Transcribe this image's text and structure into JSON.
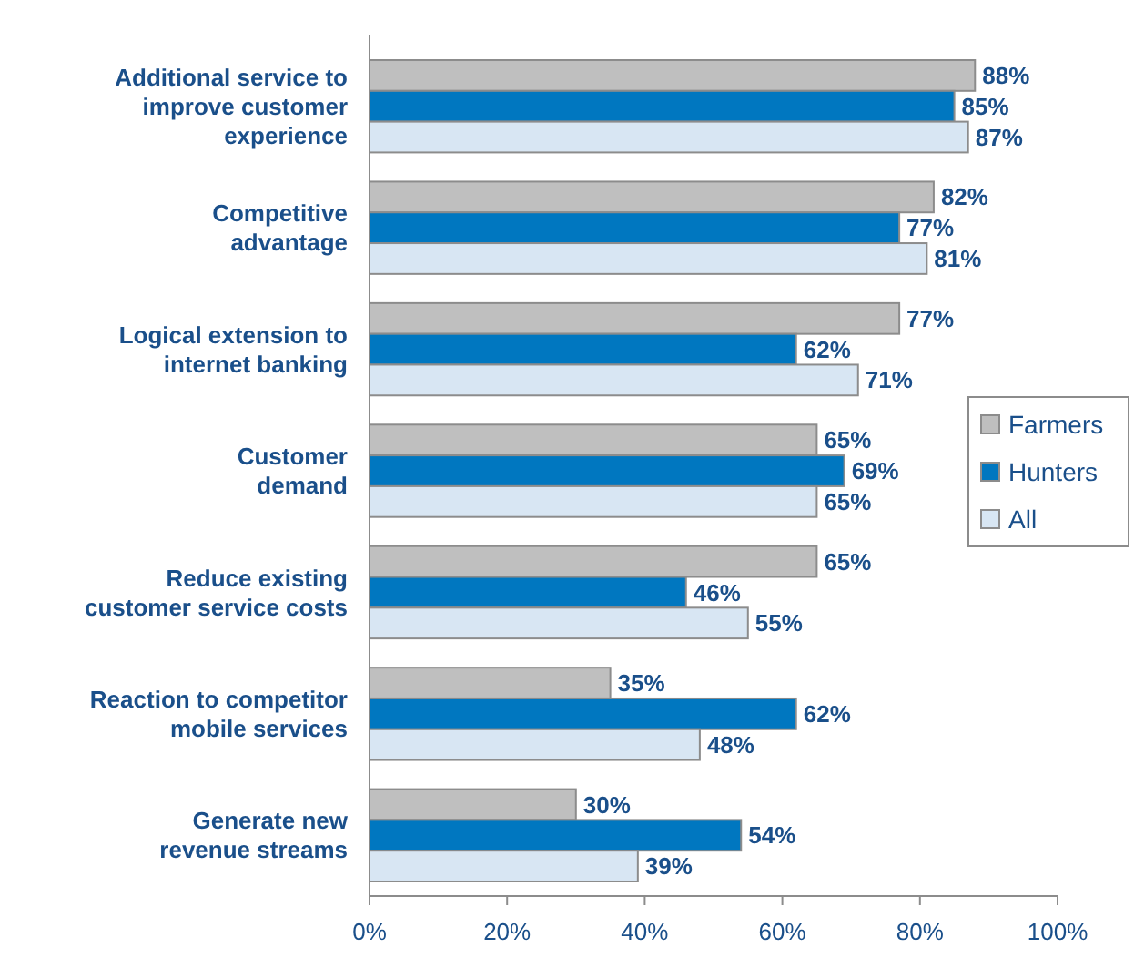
{
  "chart_data": {
    "type": "bar",
    "orientation": "horizontal",
    "categories": [
      "Additional service to\nimprove customer\nexperience",
      "Competitive\nadvantage",
      "Logical extension to\ninternet banking",
      "Customer\ndemand",
      "Reduce existing\ncustomer service costs",
      "Reaction to competitor\nmobile services",
      "Generate new\nrevenue streams"
    ],
    "series": [
      {
        "name": "Farmers",
        "color": "#bfbfbf",
        "values": [
          88,
          82,
          77,
          65,
          65,
          35,
          30
        ],
        "value_labels": [
          "88%",
          "82%",
          "77%",
          "65%",
          "65%",
          "35%",
          "30%"
        ]
      },
      {
        "name": "Hunters",
        "color": "#0077c0",
        "values": [
          85,
          77,
          62,
          69,
          46,
          62,
          54
        ],
        "value_labels": [
          "85%",
          "77%",
          "62%",
          "69%",
          "46%",
          "62%",
          "54%"
        ]
      },
      {
        "name": "All",
        "color": "#d8e6f3",
        "values": [
          87,
          81,
          71,
          65,
          55,
          48,
          39
        ],
        "value_labels": [
          "87%",
          "81%",
          "71%",
          "65%",
          "55%",
          "48%",
          "39%"
        ]
      }
    ],
    "xlim": [
      0,
      100
    ],
    "xticks": [
      {
        "value": 0,
        "label": "0%"
      },
      {
        "value": 20,
        "label": "20%"
      },
      {
        "value": 40,
        "label": "40%"
      },
      {
        "value": 60,
        "label": "60%"
      },
      {
        "value": 80,
        "label": "80%"
      },
      {
        "value": 100,
        "label": "100%"
      }
    ],
    "legend": "right",
    "grid": false
  }
}
